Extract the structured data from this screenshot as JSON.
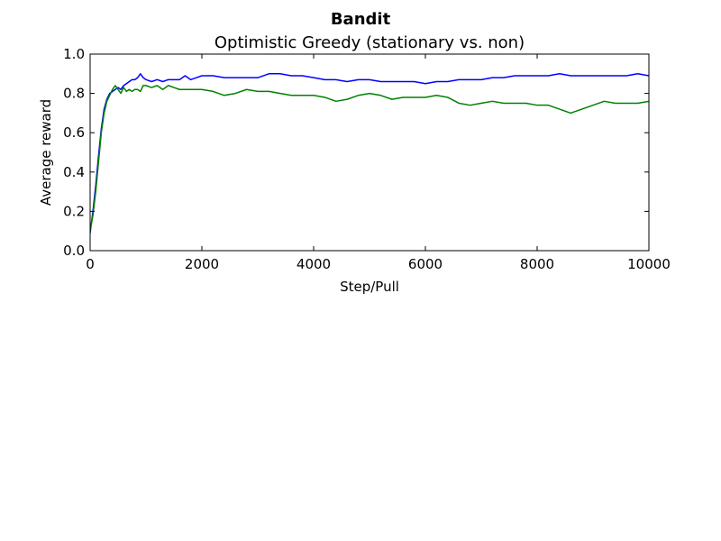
{
  "chart_data": {
    "type": "line",
    "suptitle": "Bandit",
    "title": "Optimistic Greedy (stationary vs. non)",
    "xlabel": "Step/Pull",
    "ylabel": "Average reward",
    "xlim": [
      0,
      10000
    ],
    "ylim": [
      0.0,
      1.0
    ],
    "xticks": [
      0,
      2000,
      4000,
      6000,
      8000,
      10000
    ],
    "xtick_labels": [
      "0",
      "2000",
      "4000",
      "6000",
      "8000",
      "10000"
    ],
    "yticks": [
      0.0,
      0.2,
      0.4,
      0.6,
      0.8,
      1.0
    ],
    "ytick_labels": [
      "0.0",
      "0.2",
      "0.4",
      "0.6",
      "0.8",
      "1.0"
    ],
    "grid": false,
    "series": [
      {
        "color": "#0000ff",
        "points": [
          [
            0,
            0.09
          ],
          [
            50,
            0.2
          ],
          [
            100,
            0.33
          ],
          [
            150,
            0.48
          ],
          [
            200,
            0.62
          ],
          [
            250,
            0.72
          ],
          [
            300,
            0.77
          ],
          [
            350,
            0.8
          ],
          [
            400,
            0.81
          ],
          [
            450,
            0.82
          ],
          [
            500,
            0.83
          ],
          [
            550,
            0.82
          ],
          [
            600,
            0.84
          ],
          [
            650,
            0.85
          ],
          [
            700,
            0.86
          ],
          [
            750,
            0.87
          ],
          [
            800,
            0.87
          ],
          [
            850,
            0.88
          ],
          [
            900,
            0.9
          ],
          [
            950,
            0.88
          ],
          [
            1000,
            0.87
          ],
          [
            1100,
            0.86
          ],
          [
            1200,
            0.87
          ],
          [
            1300,
            0.86
          ],
          [
            1400,
            0.87
          ],
          [
            1500,
            0.87
          ],
          [
            1600,
            0.87
          ],
          [
            1700,
            0.89
          ],
          [
            1800,
            0.87
          ],
          [
            1900,
            0.88
          ],
          [
            2000,
            0.89
          ],
          [
            2200,
            0.89
          ],
          [
            2400,
            0.88
          ],
          [
            2600,
            0.88
          ],
          [
            2800,
            0.88
          ],
          [
            3000,
            0.88
          ],
          [
            3200,
            0.9
          ],
          [
            3400,
            0.9
          ],
          [
            3600,
            0.89
          ],
          [
            3800,
            0.89
          ],
          [
            4000,
            0.88
          ],
          [
            4200,
            0.87
          ],
          [
            4400,
            0.87
          ],
          [
            4600,
            0.86
          ],
          [
            4800,
            0.87
          ],
          [
            5000,
            0.87
          ],
          [
            5200,
            0.86
          ],
          [
            5400,
            0.86
          ],
          [
            5600,
            0.86
          ],
          [
            5800,
            0.86
          ],
          [
            6000,
            0.85
          ],
          [
            6200,
            0.86
          ],
          [
            6400,
            0.86
          ],
          [
            6600,
            0.87
          ],
          [
            6800,
            0.87
          ],
          [
            7000,
            0.87
          ],
          [
            7200,
            0.88
          ],
          [
            7400,
            0.88
          ],
          [
            7600,
            0.89
          ],
          [
            7800,
            0.89
          ],
          [
            8000,
            0.89
          ],
          [
            8200,
            0.89
          ],
          [
            8400,
            0.9
          ],
          [
            8600,
            0.89
          ],
          [
            8800,
            0.89
          ],
          [
            9000,
            0.89
          ],
          [
            9200,
            0.89
          ],
          [
            9400,
            0.89
          ],
          [
            9600,
            0.89
          ],
          [
            9800,
            0.9
          ],
          [
            10000,
            0.89
          ]
        ]
      },
      {
        "color": "#008000",
        "points": [
          [
            0,
            0.1
          ],
          [
            50,
            0.18
          ],
          [
            100,
            0.3
          ],
          [
            150,
            0.45
          ],
          [
            200,
            0.6
          ],
          [
            250,
            0.7
          ],
          [
            300,
            0.76
          ],
          [
            350,
            0.79
          ],
          [
            400,
            0.82
          ],
          [
            450,
            0.84
          ],
          [
            500,
            0.82
          ],
          [
            550,
            0.8
          ],
          [
            600,
            0.83
          ],
          [
            650,
            0.81
          ],
          [
            700,
            0.82
          ],
          [
            750,
            0.81
          ],
          [
            800,
            0.82
          ],
          [
            850,
            0.82
          ],
          [
            900,
            0.81
          ],
          [
            950,
            0.84
          ],
          [
            1000,
            0.84
          ],
          [
            1100,
            0.83
          ],
          [
            1200,
            0.84
          ],
          [
            1300,
            0.82
          ],
          [
            1400,
            0.84
          ],
          [
            1500,
            0.83
          ],
          [
            1600,
            0.82
          ],
          [
            1700,
            0.82
          ],
          [
            1800,
            0.82
          ],
          [
            1900,
            0.82
          ],
          [
            2000,
            0.82
          ],
          [
            2200,
            0.81
          ],
          [
            2400,
            0.79
          ],
          [
            2600,
            0.8
          ],
          [
            2800,
            0.82
          ],
          [
            3000,
            0.81
          ],
          [
            3200,
            0.81
          ],
          [
            3400,
            0.8
          ],
          [
            3600,
            0.79
          ],
          [
            3800,
            0.79
          ],
          [
            4000,
            0.79
          ],
          [
            4200,
            0.78
          ],
          [
            4400,
            0.76
          ],
          [
            4600,
            0.77
          ],
          [
            4800,
            0.79
          ],
          [
            5000,
            0.8
          ],
          [
            5200,
            0.79
          ],
          [
            5400,
            0.77
          ],
          [
            5600,
            0.78
          ],
          [
            5800,
            0.78
          ],
          [
            6000,
            0.78
          ],
          [
            6200,
            0.79
          ],
          [
            6400,
            0.78
          ],
          [
            6600,
            0.75
          ],
          [
            6800,
            0.74
          ],
          [
            7000,
            0.75
          ],
          [
            7200,
            0.76
          ],
          [
            7400,
            0.75
          ],
          [
            7600,
            0.75
          ],
          [
            7800,
            0.75
          ],
          [
            8000,
            0.74
          ],
          [
            8200,
            0.74
          ],
          [
            8400,
            0.72
          ],
          [
            8600,
            0.7
          ],
          [
            8800,
            0.72
          ],
          [
            9000,
            0.74
          ],
          [
            9200,
            0.76
          ],
          [
            9400,
            0.75
          ],
          [
            9600,
            0.75
          ],
          [
            9800,
            0.75
          ],
          [
            10000,
            0.76
          ]
        ]
      }
    ]
  }
}
